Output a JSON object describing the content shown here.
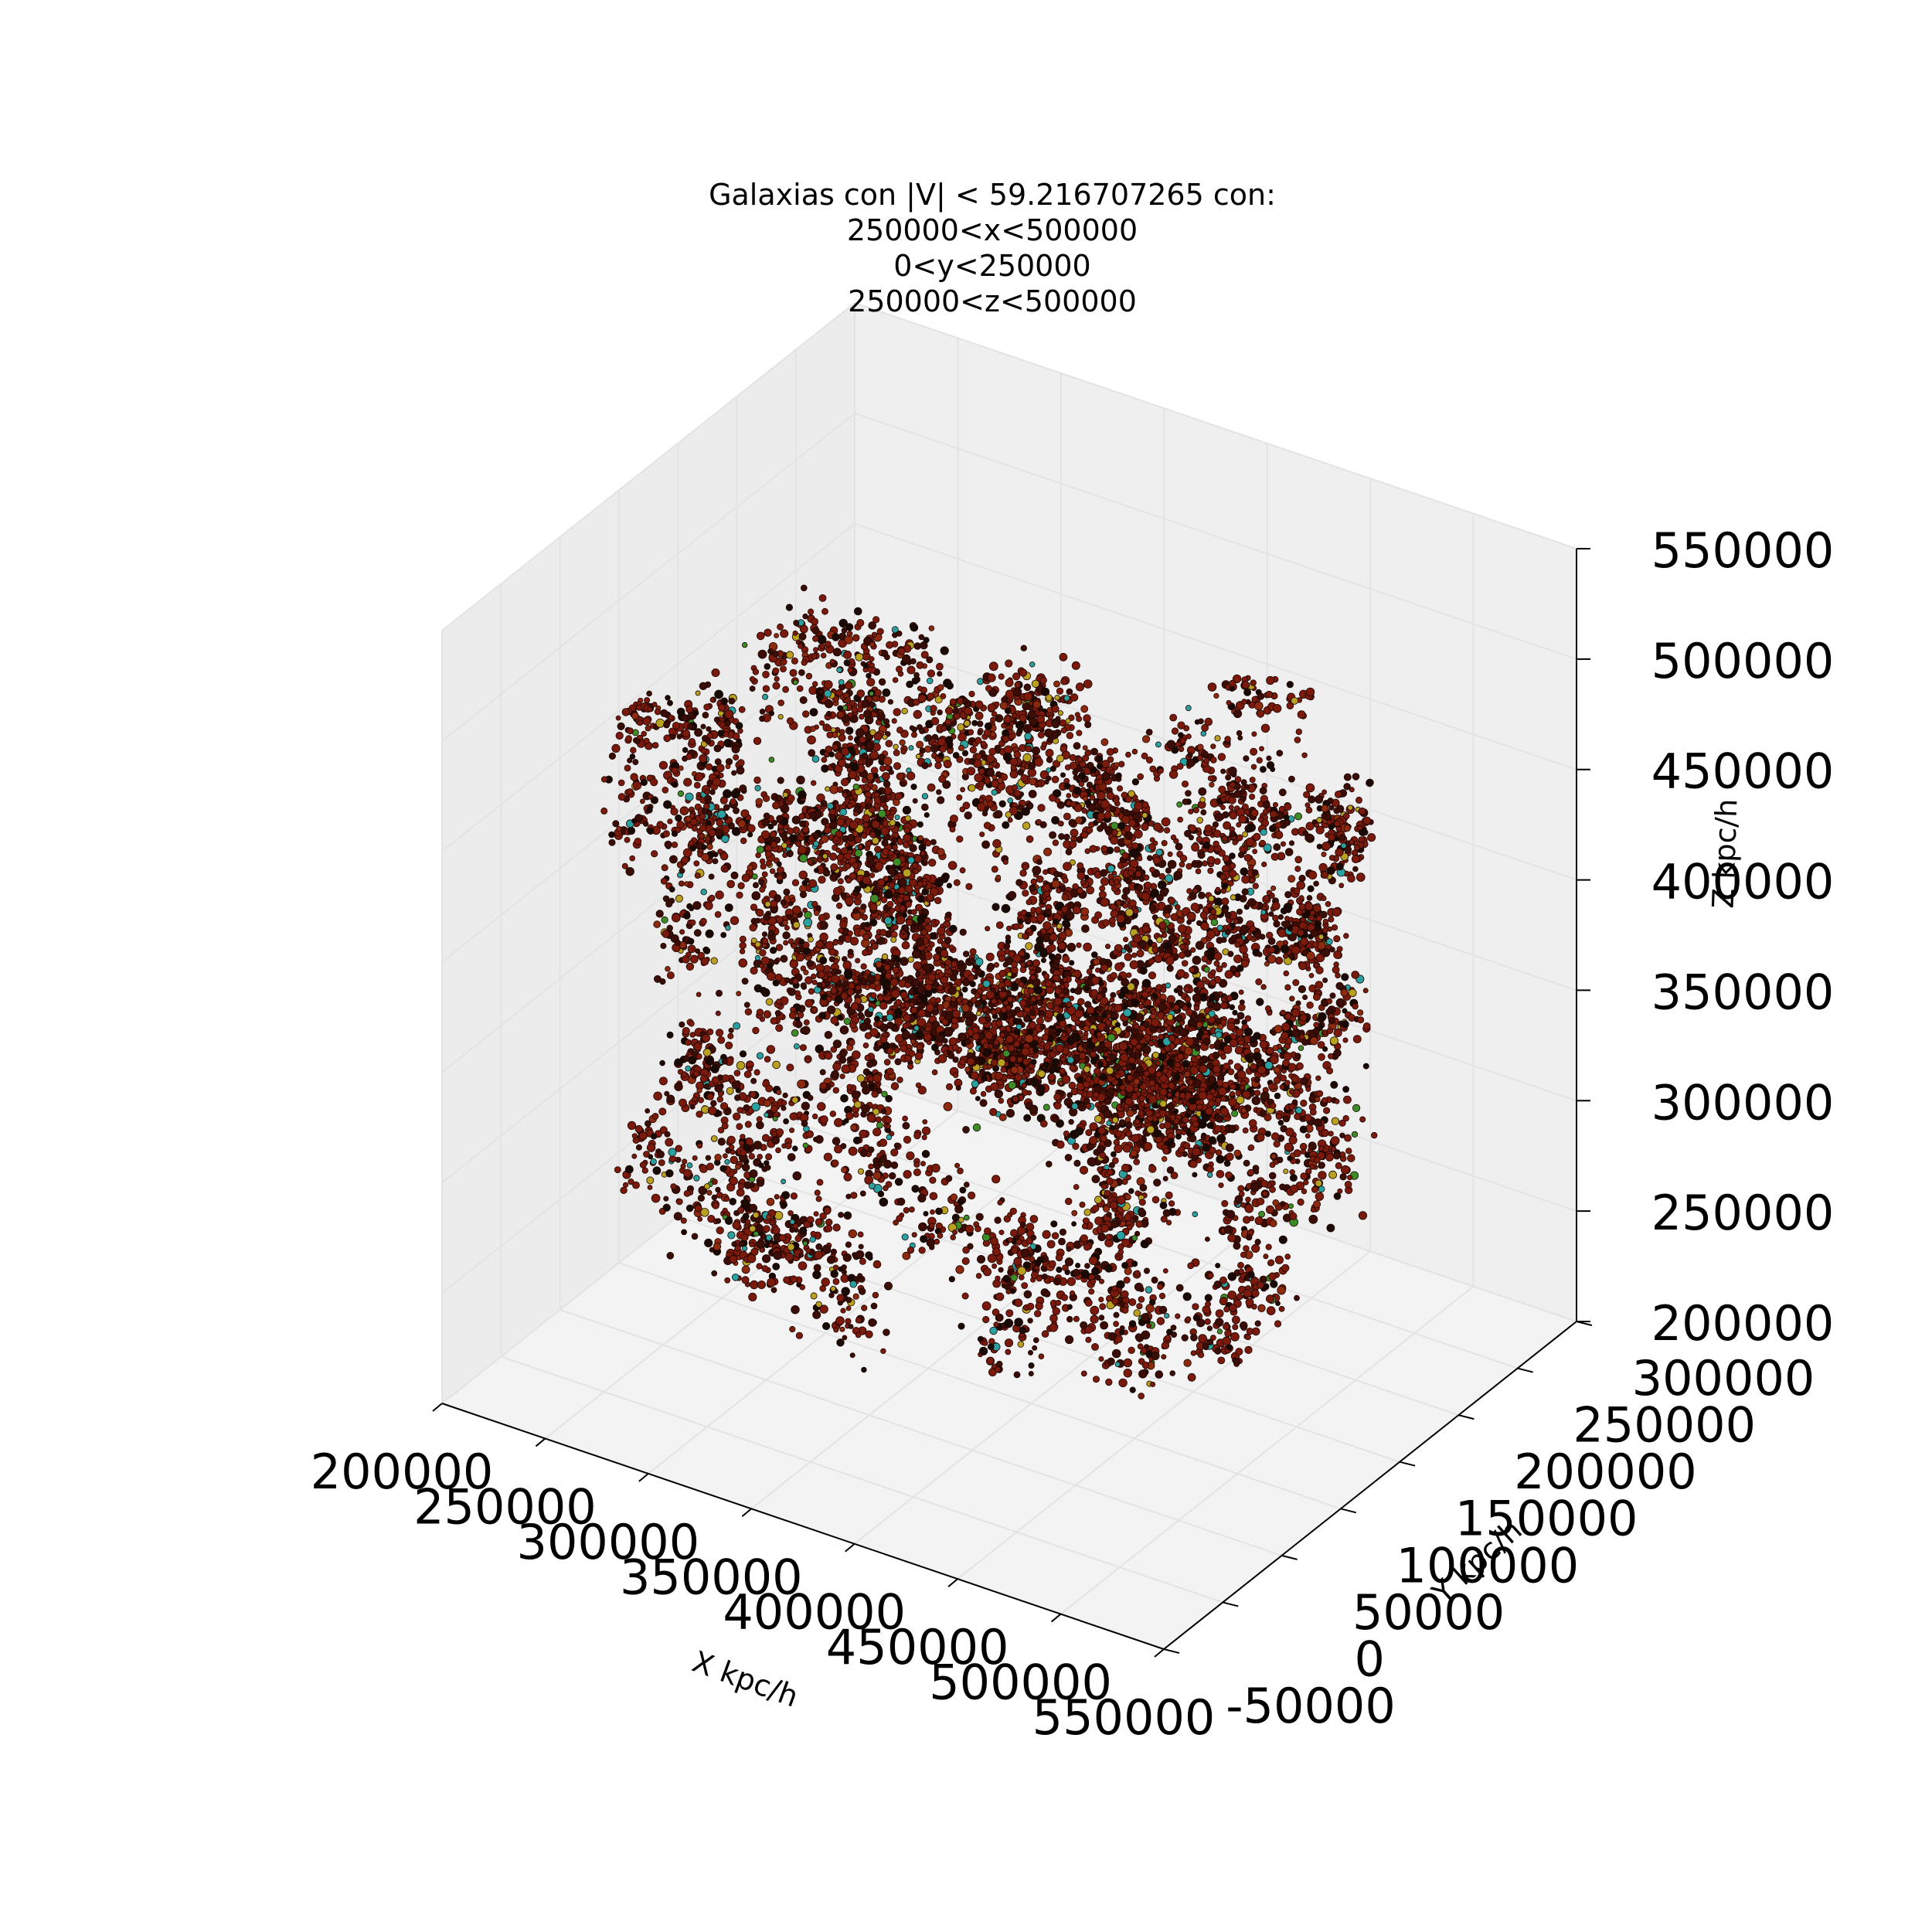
{
  "chart_data": {
    "type": "scatter",
    "projection": "3d",
    "title_lines": [
      "Galaxias con |V| < 59.216707265 con:",
      "250000<x<500000",
      "0<y<250000",
      "250000<z<500000"
    ],
    "xlabel": "X kpc/h",
    "ylabel": "Y kpc/h",
    "zlabel": "Z kpc/h",
    "xlim": [
      200000,
      550000
    ],
    "ylim": [
      -50000,
      300000
    ],
    "zlim": [
      200000,
      550000
    ],
    "x_ticks": [
      "200000",
      "250000",
      "300000",
      "350000",
      "400000",
      "450000",
      "500000",
      "550000"
    ],
    "y_ticks": [
      "-50000",
      "0",
      "50000",
      "100000",
      "150000",
      "200000",
      "250000",
      "300000"
    ],
    "z_ticks": [
      "200000",
      "250000",
      "300000",
      "350000",
      "400000",
      "450000",
      "500000",
      "550000"
    ],
    "point_cloud": {
      "x_range": [
        250000,
        500000
      ],
      "y_range": [
        0,
        250000
      ],
      "z_range": [
        250000,
        500000
      ],
      "colors": [
        "#7a1a0c",
        "#3a0d06",
        "#1a0a05",
        "#8c2a10",
        "#b8a020",
        "#2aa0a0",
        "#3c8c28"
      ]
    },
    "grid": true,
    "pane_color": "#f2f2f2"
  }
}
